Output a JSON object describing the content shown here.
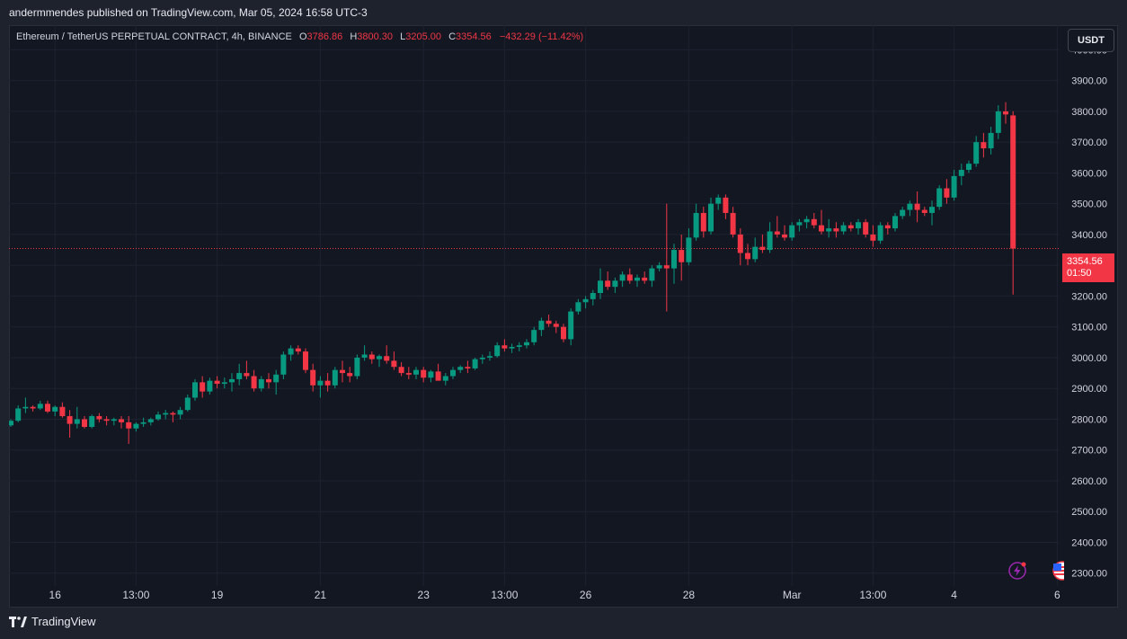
{
  "header": {
    "publisher_text": "andermmendes published on TradingView.com, Mar 05, 2024 16:58 UTC-3"
  },
  "legend": {
    "symbol": "Ethereum / TetherUS PERPETUAL CONTRACT, 4h, BINANCE",
    "o_label": "O",
    "o_value": "3786.86",
    "h_label": "H",
    "h_value": "3800.30",
    "l_label": "L",
    "l_value": "3205.00",
    "c_label": "C",
    "c_value": "3354.56",
    "change": "−432.29 (−11.42%)"
  },
  "currency_button": "USDT",
  "last_price": {
    "price": "3354.56",
    "countdown": "01:50",
    "value": 3354.56
  },
  "footer": {
    "brand": "TradingView"
  },
  "colors": {
    "background": "#131722",
    "up": "#089981",
    "down": "#f23645",
    "grid": "#1e2230",
    "text": "#d1d4dc"
  },
  "icons": [
    "tradingview-logo-icon",
    "lightning-icon",
    "us-flag-icon"
  ],
  "chart_data": {
    "type": "candlestick",
    "timeframe": "4h",
    "y_axis": {
      "ticks": [
        2300,
        2400,
        2500,
        2600,
        2700,
        2800,
        2900,
        3000,
        3100,
        3200,
        3300,
        3400,
        3500,
        3600,
        3700,
        3800,
        3900,
        4000
      ],
      "tick_labels": [
        "2300.00",
        "2400.00",
        "2500.00",
        "2600.00",
        "2700.00",
        "2800.00",
        "2900.00",
        "3000.00",
        "3100.00",
        "3200.00",
        "3300.00",
        "3400.00",
        "3500.00",
        "3600.00",
        "3700.00",
        "3800.00",
        "3900.00",
        "4000.00"
      ],
      "range": [
        2270,
        4080
      ]
    },
    "x_axis": {
      "labels": [
        {
          "text": "16",
          "bar": 6
        },
        {
          "text": "13:00",
          "bar": 17
        },
        {
          "text": "19",
          "bar": 28
        },
        {
          "text": "21",
          "bar": 42
        },
        {
          "text": "23",
          "bar": 56
        },
        {
          "text": "13:00",
          "bar": 67
        },
        {
          "text": "26",
          "bar": 78
        },
        {
          "text": "28",
          "bar": 92
        },
        {
          "text": "Mar",
          "bar": 106
        },
        {
          "text": "13:00",
          "bar": 117
        },
        {
          "text": "4",
          "bar": 128
        },
        {
          "text": "6",
          "bar": 142
        }
      ]
    },
    "candles": [
      [
        2780,
        2800,
        2775,
        2795
      ],
      [
        2795,
        2845,
        2790,
        2835
      ],
      [
        2835,
        2870,
        2820,
        2840
      ],
      [
        2840,
        2845,
        2825,
        2835
      ],
      [
        2835,
        2860,
        2830,
        2850
      ],
      [
        2850,
        2860,
        2820,
        2825
      ],
      [
        2825,
        2845,
        2810,
        2840
      ],
      [
        2840,
        2855,
        2805,
        2810
      ],
      [
        2810,
        2830,
        2740,
        2785
      ],
      [
        2785,
        2840,
        2770,
        2800
      ],
      [
        2800,
        2810,
        2770,
        2775
      ],
      [
        2775,
        2815,
        2770,
        2810
      ],
      [
        2810,
        2820,
        2790,
        2800
      ],
      [
        2800,
        2810,
        2780,
        2795
      ],
      [
        2795,
        2805,
        2780,
        2800
      ],
      [
        2800,
        2810,
        2770,
        2790
      ],
      [
        2790,
        2810,
        2720,
        2770
      ],
      [
        2770,
        2790,
        2760,
        2785
      ],
      [
        2785,
        2805,
        2775,
        2790
      ],
      [
        2790,
        2805,
        2780,
        2800
      ],
      [
        2800,
        2825,
        2795,
        2815
      ],
      [
        2815,
        2830,
        2800,
        2820
      ],
      [
        2820,
        2825,
        2790,
        2815
      ],
      [
        2815,
        2840,
        2800,
        2830
      ],
      [
        2830,
        2880,
        2825,
        2870
      ],
      [
        2870,
        2930,
        2860,
        2920
      ],
      [
        2920,
        2940,
        2870,
        2890
      ],
      [
        2890,
        2935,
        2880,
        2925
      ],
      [
        2925,
        2940,
        2900,
        2915
      ],
      [
        2915,
        2935,
        2900,
        2920
      ],
      [
        2920,
        2950,
        2890,
        2930
      ],
      [
        2930,
        2980,
        2910,
        2950
      ],
      [
        2950,
        2990,
        2930,
        2940
      ],
      [
        2940,
        2960,
        2890,
        2900
      ],
      [
        2900,
        2940,
        2890,
        2930
      ],
      [
        2930,
        2950,
        2900,
        2920
      ],
      [
        2920,
        2960,
        2880,
        2945
      ],
      [
        2945,
        3020,
        2930,
        3010
      ],
      [
        3010,
        3040,
        2990,
        3030
      ],
      [
        3030,
        3040,
        3010,
        3020
      ],
      [
        3020,
        3030,
        2950,
        2960
      ],
      [
        2960,
        2980,
        2890,
        2910
      ],
      [
        2910,
        2940,
        2870,
        2925
      ],
      [
        2925,
        2950,
        2890,
        2910
      ],
      [
        2910,
        2970,
        2900,
        2960
      ],
      [
        2960,
        2990,
        2920,
        2950
      ],
      [
        2950,
        2970,
        2920,
        2940
      ],
      [
        2940,
        3010,
        2930,
        3000
      ],
      [
        3000,
        3040,
        2990,
        3010
      ],
      [
        3010,
        3020,
        2980,
        2995
      ],
      [
        2995,
        3010,
        2970,
        3005
      ],
      [
        3005,
        3040,
        2980,
        2990
      ],
      [
        2990,
        3020,
        2960,
        2970
      ],
      [
        2970,
        2985,
        2940,
        2950
      ],
      [
        2950,
        2970,
        2930,
        2945
      ],
      [
        2945,
        2970,
        2930,
        2960
      ],
      [
        2960,
        2970,
        2920,
        2935
      ],
      [
        2935,
        2960,
        2920,
        2955
      ],
      [
        2955,
        2980,
        2940,
        2925
      ],
      [
        2925,
        2950,
        2910,
        2940
      ],
      [
        2940,
        2970,
        2930,
        2960
      ],
      [
        2960,
        2975,
        2950,
        2970
      ],
      [
        2970,
        2990,
        2950,
        2965
      ],
      [
        2965,
        3000,
        2960,
        2995
      ],
      [
        2995,
        3010,
        2980,
        3000
      ],
      [
        3000,
        3020,
        2990,
        3005
      ],
      [
        3005,
        3050,
        3000,
        3040
      ],
      [
        3040,
        3060,
        3020,
        3030
      ],
      [
        3030,
        3045,
        3015,
        3035
      ],
      [
        3035,
        3050,
        3020,
        3040
      ],
      [
        3040,
        3060,
        3030,
        3050
      ],
      [
        3050,
        3100,
        3040,
        3090
      ],
      [
        3090,
        3130,
        3070,
        3120
      ],
      [
        3120,
        3140,
        3100,
        3110
      ],
      [
        3110,
        3120,
        3080,
        3100
      ],
      [
        3100,
        3110,
        3050,
        3060
      ],
      [
        3060,
        3160,
        3040,
        3150
      ],
      [
        3150,
        3190,
        3140,
        3180
      ],
      [
        3180,
        3200,
        3160,
        3190
      ],
      [
        3190,
        3220,
        3170,
        3210
      ],
      [
        3210,
        3290,
        3190,
        3250
      ],
      [
        3250,
        3280,
        3220,
        3230
      ],
      [
        3230,
        3260,
        3210,
        3250
      ],
      [
        3250,
        3280,
        3230,
        3270
      ],
      [
        3270,
        3290,
        3240,
        3250
      ],
      [
        3250,
        3270,
        3230,
        3260
      ],
      [
        3260,
        3280,
        3240,
        3250
      ],
      [
        3250,
        3300,
        3230,
        3290
      ],
      [
        3290,
        3310,
        3280,
        3300
      ],
      [
        3300,
        3500,
        3150,
        3290
      ],
      [
        3290,
        3370,
        3240,
        3350
      ],
      [
        3350,
        3400,
        3250,
        3310
      ],
      [
        3310,
        3420,
        3300,
        3390
      ],
      [
        3390,
        3500,
        3380,
        3470
      ],
      [
        3470,
        3490,
        3390,
        3410
      ],
      [
        3410,
        3520,
        3400,
        3500
      ],
      [
        3500,
        3530,
        3480,
        3520
      ],
      [
        3520,
        3530,
        3450,
        3470
      ],
      [
        3470,
        3490,
        3390,
        3400
      ],
      [
        3400,
        3420,
        3300,
        3340
      ],
      [
        3340,
        3370,
        3300,
        3320
      ],
      [
        3320,
        3390,
        3310,
        3360
      ],
      [
        3360,
        3400,
        3340,
        3350
      ],
      [
        3350,
        3440,
        3340,
        3410
      ],
      [
        3410,
        3460,
        3390,
        3400
      ],
      [
        3400,
        3430,
        3380,
        3390
      ],
      [
        3390,
        3440,
        3380,
        3430
      ],
      [
        3430,
        3450,
        3410,
        3440
      ],
      [
        3440,
        3460,
        3420,
        3450
      ],
      [
        3450,
        3470,
        3420,
        3430
      ],
      [
        3430,
        3480,
        3400,
        3410
      ],
      [
        3410,
        3450,
        3390,
        3420
      ],
      [
        3420,
        3440,
        3390,
        3410
      ],
      [
        3410,
        3440,
        3400,
        3430
      ],
      [
        3430,
        3440,
        3410,
        3420
      ],
      [
        3420,
        3450,
        3400,
        3440
      ],
      [
        3440,
        3450,
        3390,
        3400
      ],
      [
        3400,
        3430,
        3360,
        3380
      ],
      [
        3380,
        3440,
        3370,
        3430
      ],
      [
        3430,
        3440,
        3400,
        3420
      ],
      [
        3420,
        3470,
        3410,
        3460
      ],
      [
        3460,
        3490,
        3450,
        3480
      ],
      [
        3480,
        3510,
        3460,
        3500
      ],
      [
        3500,
        3540,
        3440,
        3480
      ],
      [
        3480,
        3490,
        3460,
        3470
      ],
      [
        3470,
        3510,
        3430,
        3490
      ],
      [
        3490,
        3560,
        3480,
        3550
      ],
      [
        3550,
        3580,
        3500,
        3520
      ],
      [
        3520,
        3610,
        3510,
        3590
      ],
      [
        3590,
        3630,
        3560,
        3610
      ],
      [
        3610,
        3640,
        3600,
        3630
      ],
      [
        3630,
        3720,
        3620,
        3700
      ],
      [
        3700,
        3730,
        3650,
        3680
      ],
      [
        3680,
        3750,
        3660,
        3730
      ],
      [
        3730,
        3820,
        3710,
        3800
      ],
      [
        3800,
        3830,
        3760,
        3790
      ],
      [
        3786.86,
        3800.3,
        3205.0,
        3354.56
      ]
    ]
  }
}
